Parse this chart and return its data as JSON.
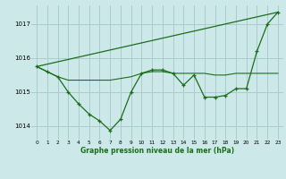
{
  "background_color": "#cce8e8",
  "grid_color": "#aacccc",
  "line_color": "#1a6e1a",
  "marker_color": "#1a6e1a",
  "xlabel": "Graphe pression niveau de la mer (hPa)",
  "xlim": [
    -0.5,
    23.5
  ],
  "ylim": [
    1013.6,
    1017.55
  ],
  "yticks": [
    1014,
    1015,
    1016,
    1017
  ],
  "xticks": [
    0,
    1,
    2,
    3,
    4,
    5,
    6,
    7,
    8,
    9,
    10,
    11,
    12,
    13,
    14,
    15,
    16,
    17,
    18,
    19,
    20,
    21,
    22,
    23
  ],
  "series_jagged": {
    "x": [
      0,
      1,
      2,
      3,
      4,
      5,
      6,
      7,
      8,
      9,
      10,
      11,
      12,
      13,
      14,
      15,
      16,
      17,
      18,
      19,
      20,
      21,
      22,
      23
    ],
    "y": [
      1015.75,
      1015.6,
      1015.45,
      1015.0,
      1014.65,
      1014.35,
      1014.15,
      1013.87,
      1014.2,
      1015.0,
      1015.55,
      1015.65,
      1015.65,
      1015.55,
      1015.2,
      1015.5,
      1014.85,
      1014.85,
      1014.9,
      1015.1,
      1015.1,
      1016.2,
      1017.0,
      1017.35
    ]
  },
  "series_flat": {
    "x": [
      0,
      1,
      2,
      3,
      4,
      5,
      6,
      7,
      8,
      9,
      10,
      11,
      12,
      13,
      14,
      15,
      16,
      17,
      18,
      19,
      20,
      21,
      22,
      23
    ],
    "y": [
      1015.75,
      1015.6,
      1015.45,
      1015.35,
      1015.35,
      1015.35,
      1015.35,
      1015.35,
      1015.4,
      1015.45,
      1015.55,
      1015.6,
      1015.6,
      1015.55,
      1015.55,
      1015.55,
      1015.55,
      1015.5,
      1015.5,
      1015.55,
      1015.55,
      1015.55,
      1015.55,
      1015.55
    ]
  },
  "series_diagonal": {
    "x": [
      0,
      23
    ],
    "y": [
      1015.75,
      1017.35
    ]
  }
}
